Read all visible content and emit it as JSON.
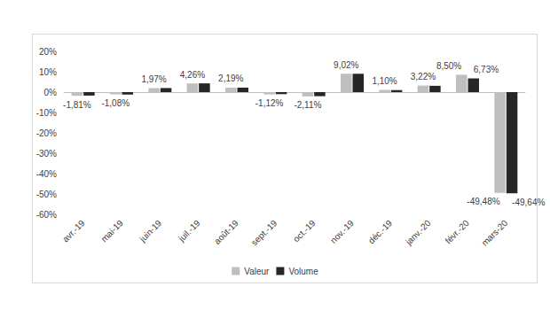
{
  "chart_data": {
    "type": "bar",
    "categories": [
      "avr.-19",
      "mai-19",
      "juin-19",
      "juil.-19",
      "août-19",
      "sept.-19",
      "oct.-19",
      "nov.-19",
      "déc.-19",
      "janv.-20",
      "févr.-20",
      "mars-20"
    ],
    "series": [
      {
        "name": "Valeur",
        "color": "#bfbfbf",
        "values": [
          -1.81,
          -1.08,
          1.97,
          4.26,
          2.19,
          -1.12,
          -2.11,
          9.02,
          1.1,
          3.22,
          8.5,
          -49.48
        ],
        "value_labels": [
          "-1,81%",
          "-1,08%",
          "1,97%",
          "4,26%",
          "2,19%",
          "-1,12%",
          "-2,11%",
          "9,02%",
          "1,10%",
          "3,22%",
          "8,50%",
          "-49,48%"
        ]
      },
      {
        "name": "Volume",
        "color": "#262626",
        "values": [
          -1.7,
          -1.2,
          2.0,
          4.3,
          2.2,
          -1.0,
          -2.0,
          9.0,
          1.0,
          3.1,
          6.73,
          -49.64
        ],
        "value_labels": [
          null,
          null,
          null,
          null,
          null,
          null,
          null,
          null,
          null,
          null,
          "6,73%",
          "-49,64%"
        ]
      }
    ],
    "ylim": [
      -60,
      20
    ],
    "yticks": [
      {
        "value": -60,
        "label": "-60%"
      },
      {
        "value": -50,
        "label": "-50%"
      },
      {
        "value": -40,
        "label": "-40%"
      },
      {
        "value": -30,
        "label": "-30%"
      },
      {
        "value": -20,
        "label": "-20%"
      },
      {
        "value": -10,
        "label": "-10%"
      },
      {
        "value": 0,
        "label": "0%"
      },
      {
        "value": 10,
        "label": "10%"
      },
      {
        "value": 20,
        "label": "20%"
      }
    ],
    "grid": false,
    "legend": "bottom",
    "data_labels": true
  }
}
